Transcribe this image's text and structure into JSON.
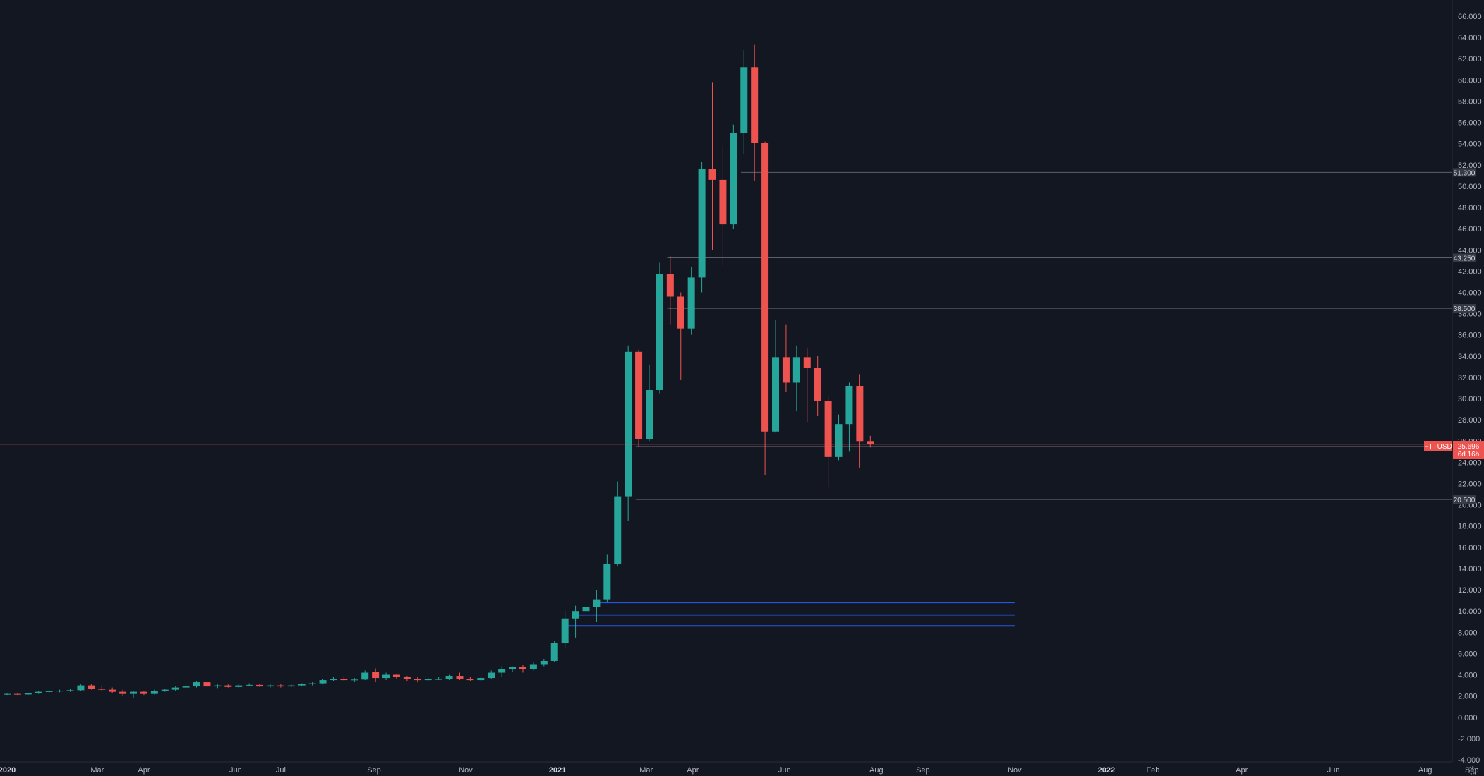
{
  "colors": {
    "background": "#131722",
    "up": "#26a69a",
    "down": "#ef5350",
    "axis_text": "#b2b5be",
    "level_line": "#5d606b",
    "zone_line": "#2962ff",
    "label_bg": "#363a45",
    "price_line": "#ef5350"
  },
  "symbol": {
    "name": "FTTUSD",
    "price_label": "25.696",
    "countdown": "6d 16h",
    "price": 25.696
  },
  "chart_data": {
    "type": "candlestick",
    "title": "",
    "xlabel": "",
    "ylabel": "",
    "ylim": [
      -4,
      66
    ],
    "y_ticks": [
      "66.000",
      "64.000",
      "62.000",
      "60.000",
      "58.000",
      "56.000",
      "54.000",
      "52.000",
      "50.000",
      "48.000",
      "46.000",
      "44.000",
      "42.000",
      "40.000",
      "38.000",
      "36.000",
      "34.000",
      "32.000",
      "30.000",
      "28.000",
      "26.000",
      "24.000",
      "22.000",
      "20.000",
      "18.000",
      "16.000",
      "14.000",
      "12.000",
      "10.000",
      "8.000",
      "6.000",
      "4.000",
      "2.000",
      "0.000",
      "-2.000",
      "-4.000"
    ],
    "x_ticks": [
      {
        "label": "2020",
        "date": "2020-01-01",
        "major": true
      },
      {
        "label": "Mar",
        "date": "2020-03-01",
        "major": false
      },
      {
        "label": "Apr",
        "date": "2020-04-01",
        "major": false
      },
      {
        "label": "Jun",
        "date": "2020-06-01",
        "major": false
      },
      {
        "label": "Jul",
        "date": "2020-07-01",
        "major": false
      },
      {
        "label": "Sep",
        "date": "2020-09-01",
        "major": false
      },
      {
        "label": "Nov",
        "date": "2020-11-01",
        "major": false
      },
      {
        "label": "2021",
        "date": "2021-01-01",
        "major": true
      },
      {
        "label": "Mar",
        "date": "2021-03-01",
        "major": false
      },
      {
        "label": "Apr",
        "date": "2021-04-01",
        "major": false
      },
      {
        "label": "Jun",
        "date": "2021-06-01",
        "major": false
      },
      {
        "label": "Aug",
        "date": "2021-08-01",
        "major": false
      },
      {
        "label": "Sep",
        "date": "2021-09-01",
        "major": false
      },
      {
        "label": "Nov",
        "date": "2021-11-01",
        "major": false
      },
      {
        "label": "2022",
        "date": "2022-01-01",
        "major": true
      },
      {
        "label": "Feb",
        "date": "2022-02-01",
        "major": false
      },
      {
        "label": "Apr",
        "date": "2022-04-01",
        "major": false
      },
      {
        "label": "Jun",
        "date": "2022-06-01",
        "major": false
      },
      {
        "label": "Aug",
        "date": "2022-08-01",
        "major": false
      },
      {
        "label": "Sep",
        "date": "2022-09-01",
        "major": false
      }
    ],
    "levels": [
      {
        "value": 51.3,
        "label": "51.300",
        "start_date": "2021-05-03"
      },
      {
        "value": 43.25,
        "label": "43.250",
        "start_date": "2021-03-15"
      },
      {
        "value": 38.5,
        "label": "38.500",
        "start_date": "2021-03-15"
      },
      {
        "value": 25.5,
        "label": "25.500",
        "start_date": "2021-02-22"
      },
      {
        "value": 20.5,
        "label": "20.500",
        "start_date": "2021-02-22"
      }
    ],
    "zones": [
      {
        "value": 10.8,
        "start_date": "2021-01-25",
        "end_date": "2021-11-01",
        "width": 2
      },
      {
        "value": 9.6,
        "start_date": "2021-01-11",
        "end_date": "2021-11-01",
        "width": 1
      },
      {
        "value": 8.6,
        "start_date": "2021-01-04",
        "end_date": "2021-11-01",
        "width": 2
      }
    ],
    "candles": [
      {
        "date": "2020-01-01",
        "open": 2.2,
        "high": 2.3,
        "low": 2.1,
        "close": 2.2
      },
      {
        "date": "2020-01-08",
        "open": 2.2,
        "high": 2.3,
        "low": 2.1,
        "close": 2.15
      },
      {
        "date": "2020-01-15",
        "open": 2.15,
        "high": 2.3,
        "low": 2.1,
        "close": 2.25
      },
      {
        "date": "2020-01-22",
        "open": 2.25,
        "high": 2.5,
        "low": 2.2,
        "close": 2.4
      },
      {
        "date": "2020-01-29",
        "open": 2.4,
        "high": 2.55,
        "low": 2.3,
        "close": 2.45
      },
      {
        "date": "2020-02-05",
        "open": 2.45,
        "high": 2.6,
        "low": 2.35,
        "close": 2.5
      },
      {
        "date": "2020-02-12",
        "open": 2.5,
        "high": 2.7,
        "low": 2.4,
        "close": 2.55
      },
      {
        "date": "2020-02-19",
        "open": 2.55,
        "high": 3.1,
        "low": 2.5,
        "close": 3.0
      },
      {
        "date": "2020-02-26",
        "open": 3.0,
        "high": 3.1,
        "low": 2.6,
        "close": 2.7
      },
      {
        "date": "2020-03-04",
        "open": 2.7,
        "high": 2.9,
        "low": 2.5,
        "close": 2.6
      },
      {
        "date": "2020-03-11",
        "open": 2.6,
        "high": 2.8,
        "low": 2.3,
        "close": 2.4
      },
      {
        "date": "2020-03-18",
        "open": 2.4,
        "high": 2.6,
        "low": 2.0,
        "close": 2.2
      },
      {
        "date": "2020-03-25",
        "open": 2.2,
        "high": 2.5,
        "low": 1.8,
        "close": 2.4
      },
      {
        "date": "2020-04-01",
        "open": 2.4,
        "high": 2.5,
        "low": 2.1,
        "close": 2.2
      },
      {
        "date": "2020-04-08",
        "open": 2.2,
        "high": 2.6,
        "low": 2.15,
        "close": 2.5
      },
      {
        "date": "2020-04-15",
        "open": 2.5,
        "high": 2.7,
        "low": 2.4,
        "close": 2.6
      },
      {
        "date": "2020-04-22",
        "open": 2.6,
        "high": 2.9,
        "low": 2.5,
        "close": 2.8
      },
      {
        "date": "2020-04-29",
        "open": 2.8,
        "high": 3.0,
        "low": 2.7,
        "close": 2.9
      },
      {
        "date": "2020-05-06",
        "open": 2.9,
        "high": 3.4,
        "low": 2.8,
        "close": 3.3
      },
      {
        "date": "2020-05-13",
        "open": 3.3,
        "high": 3.4,
        "low": 2.8,
        "close": 2.9
      },
      {
        "date": "2020-05-20",
        "open": 2.9,
        "high": 3.1,
        "low": 2.75,
        "close": 3.0
      },
      {
        "date": "2020-05-27",
        "open": 3.0,
        "high": 3.1,
        "low": 2.8,
        "close": 2.85
      },
      {
        "date": "2020-06-03",
        "open": 2.85,
        "high": 3.1,
        "low": 2.8,
        "close": 3.0
      },
      {
        "date": "2020-06-10",
        "open": 3.0,
        "high": 3.2,
        "low": 2.9,
        "close": 3.05
      },
      {
        "date": "2020-06-17",
        "open": 3.05,
        "high": 3.15,
        "low": 2.85,
        "close": 2.9
      },
      {
        "date": "2020-06-24",
        "open": 2.9,
        "high": 3.1,
        "low": 2.8,
        "close": 3.0
      },
      {
        "date": "2020-07-01",
        "open": 3.0,
        "high": 3.1,
        "low": 2.8,
        "close": 2.9
      },
      {
        "date": "2020-07-08",
        "open": 2.9,
        "high": 3.1,
        "low": 2.85,
        "close": 3.0
      },
      {
        "date": "2020-07-15",
        "open": 3.0,
        "high": 3.2,
        "low": 2.9,
        "close": 3.15
      },
      {
        "date": "2020-07-22",
        "open": 3.15,
        "high": 3.3,
        "low": 3.0,
        "close": 3.2
      },
      {
        "date": "2020-07-29",
        "open": 3.2,
        "high": 3.6,
        "low": 3.1,
        "close": 3.5
      },
      {
        "date": "2020-08-05",
        "open": 3.5,
        "high": 3.8,
        "low": 3.4,
        "close": 3.6
      },
      {
        "date": "2020-08-12",
        "open": 3.6,
        "high": 3.9,
        "low": 3.4,
        "close": 3.5
      },
      {
        "date": "2020-08-19",
        "open": 3.5,
        "high": 3.7,
        "low": 3.3,
        "close": 3.55
      },
      {
        "date": "2020-08-26",
        "open": 3.55,
        "high": 4.4,
        "low": 3.5,
        "close": 4.2
      },
      {
        "date": "2020-09-02",
        "open": 4.3,
        "high": 4.6,
        "low": 3.3,
        "close": 3.7
      },
      {
        "date": "2020-09-09",
        "open": 3.7,
        "high": 4.2,
        "low": 3.5,
        "close": 4.0
      },
      {
        "date": "2020-09-16",
        "open": 4.0,
        "high": 4.1,
        "low": 3.6,
        "close": 3.8
      },
      {
        "date": "2020-09-23",
        "open": 3.8,
        "high": 3.9,
        "low": 3.4,
        "close": 3.6
      },
      {
        "date": "2020-09-30",
        "open": 3.6,
        "high": 3.8,
        "low": 3.3,
        "close": 3.5
      },
      {
        "date": "2020-10-07",
        "open": 3.5,
        "high": 3.7,
        "low": 3.4,
        "close": 3.6
      },
      {
        "date": "2020-10-14",
        "open": 3.6,
        "high": 3.8,
        "low": 3.5,
        "close": 3.6
      },
      {
        "date": "2020-10-21",
        "open": 3.6,
        "high": 4.0,
        "low": 3.5,
        "close": 3.9
      },
      {
        "date": "2020-10-28",
        "open": 3.9,
        "high": 4.2,
        "low": 3.5,
        "close": 3.6
      },
      {
        "date": "2020-11-04",
        "open": 3.6,
        "high": 3.8,
        "low": 3.4,
        "close": 3.5
      },
      {
        "date": "2020-11-11",
        "open": 3.5,
        "high": 3.8,
        "low": 3.4,
        "close": 3.7
      },
      {
        "date": "2020-11-18",
        "open": 3.7,
        "high": 4.4,
        "low": 3.6,
        "close": 4.2
      },
      {
        "date": "2020-11-25",
        "open": 4.2,
        "high": 4.8,
        "low": 3.8,
        "close": 4.5
      },
      {
        "date": "2020-12-02",
        "open": 4.5,
        "high": 4.8,
        "low": 4.3,
        "close": 4.7
      },
      {
        "date": "2020-12-09",
        "open": 4.7,
        "high": 4.9,
        "low": 4.2,
        "close": 4.5
      },
      {
        "date": "2020-12-16",
        "open": 4.5,
        "high": 5.2,
        "low": 4.4,
        "close": 5.0
      },
      {
        "date": "2020-12-23",
        "open": 5.0,
        "high": 5.5,
        "low": 4.8,
        "close": 5.3
      },
      {
        "date": "2020-12-30",
        "open": 5.3,
        "high": 7.2,
        "low": 5.2,
        "close": 7.0
      },
      {
        "date": "2021-01-06",
        "open": 7.0,
        "high": 10.0,
        "low": 6.5,
        "close": 9.3
      },
      {
        "date": "2021-01-13",
        "open": 9.3,
        "high": 10.5,
        "low": 7.5,
        "close": 10.0
      },
      {
        "date": "2021-01-20",
        "open": 10.0,
        "high": 11.0,
        "low": 8.2,
        "close": 10.4
      },
      {
        "date": "2021-01-27",
        "open": 10.4,
        "high": 12.0,
        "low": 9.0,
        "close": 11.1
      },
      {
        "date": "2021-02-03",
        "open": 11.1,
        "high": 15.3,
        "low": 10.8,
        "close": 14.4
      },
      {
        "date": "2021-02-10",
        "open": 14.4,
        "high": 22.2,
        "low": 14.2,
        "close": 20.8
      },
      {
        "date": "2021-02-17",
        "open": 20.8,
        "high": 35.0,
        "low": 18.5,
        "close": 34.4
      },
      {
        "date": "2021-02-24",
        "open": 34.4,
        "high": 34.6,
        "low": 25.5,
        "close": 26.2
      },
      {
        "date": "2021-03-03",
        "open": 26.2,
        "high": 33.2,
        "low": 26.0,
        "close": 30.8
      },
      {
        "date": "2021-03-10",
        "open": 30.8,
        "high": 42.8,
        "low": 30.5,
        "close": 41.7
      },
      {
        "date": "2021-03-17",
        "open": 41.7,
        "high": 43.4,
        "low": 37.0,
        "close": 39.6
      },
      {
        "date": "2021-03-24",
        "open": 39.6,
        "high": 40.0,
        "low": 31.8,
        "close": 36.6
      },
      {
        "date": "2021-03-31",
        "open": 36.6,
        "high": 42.4,
        "low": 36.0,
        "close": 41.4
      },
      {
        "date": "2021-04-07",
        "open": 41.4,
        "high": 52.3,
        "low": 40.0,
        "close": 51.6
      },
      {
        "date": "2021-04-14",
        "open": 51.6,
        "high": 59.8,
        "low": 44.0,
        "close": 50.6
      },
      {
        "date": "2021-04-21",
        "open": 50.6,
        "high": 53.8,
        "low": 42.5,
        "close": 46.4
      },
      {
        "date": "2021-04-28",
        "open": 46.4,
        "high": 55.8,
        "low": 46.0,
        "close": 55.0
      },
      {
        "date": "2021-05-05",
        "open": 55.0,
        "high": 62.8,
        "low": 53.0,
        "close": 61.2
      },
      {
        "date": "2021-05-12",
        "open": 61.2,
        "high": 63.3,
        "low": 50.5,
        "close": 54.1
      },
      {
        "date": "2021-05-19",
        "open": 54.1,
        "high": 54.2,
        "low": 22.8,
        "close": 26.9
      },
      {
        "date": "2021-05-26",
        "open": 26.9,
        "high": 37.4,
        "low": 26.8,
        "close": 33.9
      },
      {
        "date": "2021-06-02",
        "open": 33.9,
        "high": 37.0,
        "low": 30.6,
        "close": 31.5
      },
      {
        "date": "2021-06-09",
        "open": 31.5,
        "high": 35.0,
        "low": 28.8,
        "close": 33.9
      },
      {
        "date": "2021-06-16",
        "open": 33.9,
        "high": 34.7,
        "low": 27.8,
        "close": 32.9
      },
      {
        "date": "2021-06-23",
        "open": 32.9,
        "high": 34.0,
        "low": 28.4,
        "close": 29.8
      },
      {
        "date": "2021-06-30",
        "open": 29.8,
        "high": 30.2,
        "low": 21.7,
        "close": 24.5
      },
      {
        "date": "2021-07-07",
        "open": 24.5,
        "high": 28.5,
        "low": 24.2,
        "close": 27.6
      },
      {
        "date": "2021-07-14",
        "open": 27.6,
        "high": 31.5,
        "low": 25.0,
        "close": 31.2
      },
      {
        "date": "2021-07-21",
        "open": 31.2,
        "high": 32.3,
        "low": 23.5,
        "close": 26.0
      },
      {
        "date": "2021-07-28",
        "open": 26.0,
        "high": 26.5,
        "low": 25.4,
        "close": 25.696
      }
    ]
  }
}
